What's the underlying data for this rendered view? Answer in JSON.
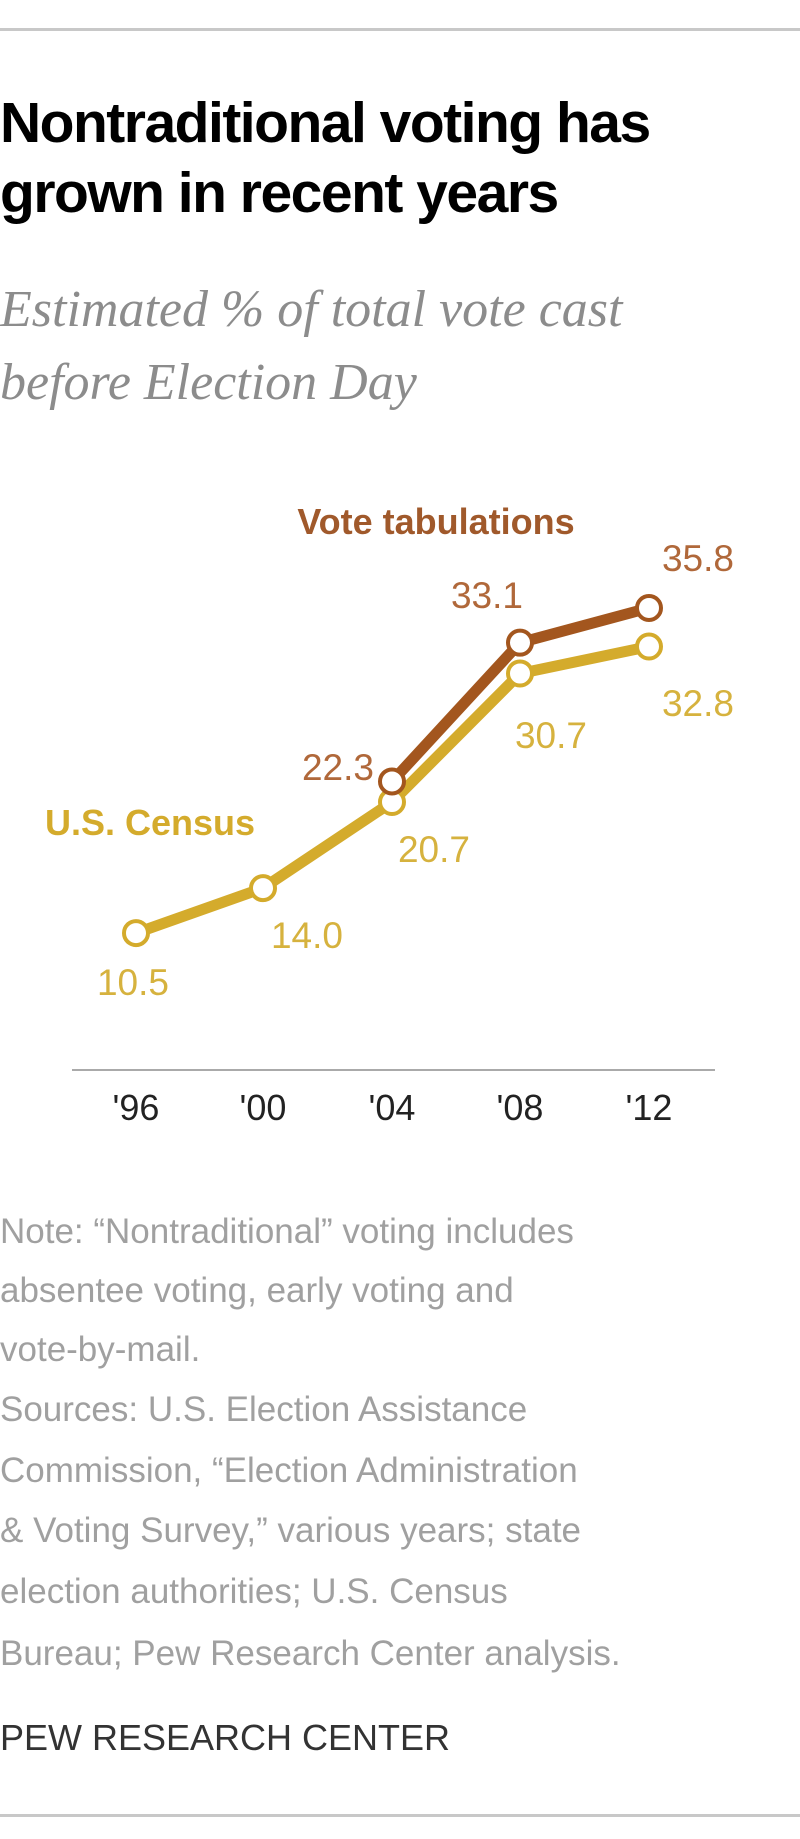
{
  "title_lines": [
    "Nontraditional voting has",
    "grown in recent years"
  ],
  "subtitle_lines": [
    "Estimated % of total vote cast",
    "before Election Day"
  ],
  "chart_data": {
    "type": "line",
    "title": "Nontraditional voting has grown in recent years",
    "subtitle": "Estimated % of total vote cast before Election Day",
    "categories": [
      "'96",
      "'00",
      "'04",
      "'08",
      "'12"
    ],
    "ylim": [
      0,
      40
    ],
    "grid": false,
    "series": [
      {
        "name": "Vote tabulations",
        "color": "#a3561e",
        "label_color": "#b0683a",
        "values": [
          null,
          null,
          22.3,
          33.1,
          35.8
        ],
        "labels": [
          "",
          "",
          "22.3",
          "33.1",
          "35.8"
        ]
      },
      {
        "name": "U.S. Census",
        "color": "#d4ab2c",
        "label_color": "#d6b23e",
        "values": [
          10.5,
          14.0,
          20.7,
          30.7,
          32.8
        ],
        "labels": [
          "10.5",
          "14.0",
          "20.7",
          "30.7",
          "32.8"
        ]
      }
    ]
  },
  "notes": [
    "Note: “Nontraditional” voting includes",
    "absentee voting, early voting and",
    "vote-by-mail.",
    "Sources: U.S. Election Assistance",
    "Commission, “Election Administration",
    "& Voting Survey,” various years; state",
    "election authorities; U.S. Census",
    "Bureau; Pew Research Center analysis."
  ],
  "brand": "PEW RESEARCH CENTER"
}
